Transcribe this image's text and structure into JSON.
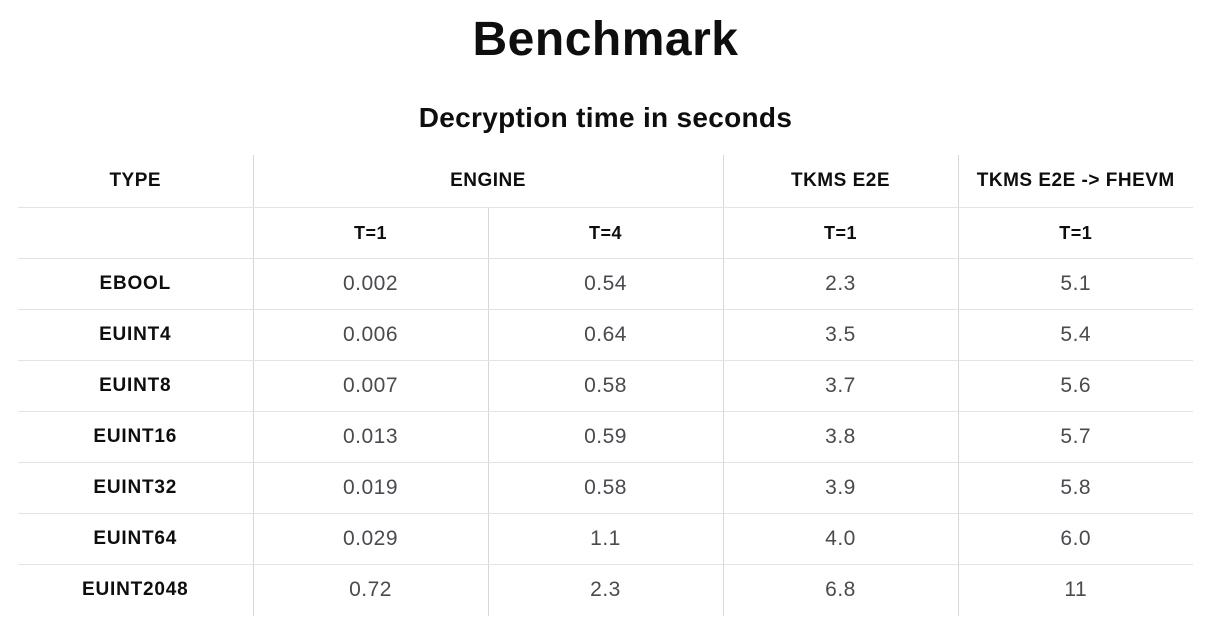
{
  "page": {
    "title": "Benchmark",
    "subtitle": "Decryption time in seconds"
  },
  "table": {
    "col_groups": [
      {
        "label": "TYPE",
        "colspan": 1
      },
      {
        "label": "ENGINE",
        "colspan": 2
      },
      {
        "label": "TKMS E2E",
        "colspan": 1
      },
      {
        "label": "TKMS E2E -> FHEVM",
        "colspan": 1
      }
    ],
    "sub_headers": [
      "",
      "T=1",
      "T=4",
      "T=1",
      "T=1"
    ],
    "rows": [
      {
        "type": "EBOOL",
        "values": [
          "0.002",
          "0.54",
          "2.3",
          "5.1"
        ]
      },
      {
        "type": "EUINT4",
        "values": [
          "0.006",
          "0.64",
          "3.5",
          "5.4"
        ]
      },
      {
        "type": "EUINT8",
        "values": [
          "0.007",
          "0.58",
          "3.7",
          "5.6"
        ]
      },
      {
        "type": "EUINT16",
        "values": [
          "0.013",
          "0.59",
          "3.8",
          "5.7"
        ]
      },
      {
        "type": "EUINT32",
        "values": [
          "0.019",
          "0.58",
          "3.9",
          "5.8"
        ]
      },
      {
        "type": "EUINT64",
        "values": [
          "0.029",
          "1.1",
          "4.0",
          "6.0"
        ]
      },
      {
        "type": "EUINT2048",
        "values": [
          "0.72",
          "2.3",
          "6.8",
          "11"
        ]
      }
    ]
  },
  "chart_data": {
    "type": "table",
    "title": "Benchmark",
    "subtitle": "Decryption time in seconds",
    "unit": "seconds",
    "categories": [
      "EBOOL",
      "EUINT4",
      "EUINT8",
      "EUINT16",
      "EUINT32",
      "EUINT64",
      "EUINT2048"
    ],
    "series": [
      {
        "name": "ENGINE T=1",
        "values": [
          0.002,
          0.006,
          0.007,
          0.013,
          0.019,
          0.029,
          0.72
        ]
      },
      {
        "name": "ENGINE T=4",
        "values": [
          0.54,
          0.64,
          0.58,
          0.59,
          0.58,
          1.1,
          2.3
        ]
      },
      {
        "name": "TKMS E2E T=1",
        "values": [
          2.3,
          3.5,
          3.7,
          3.8,
          3.9,
          4.0,
          6.8
        ]
      },
      {
        "name": "TKMS E2E -> FHEVM T=1",
        "values": [
          5.1,
          5.4,
          5.6,
          5.7,
          5.8,
          6.0,
          11
        ]
      }
    ]
  },
  "colors": {
    "background": "#ffffff",
    "heading_text": "#0e0e0e",
    "value_text": "#4a4a50",
    "grid_vertical": "#d7d7d7",
    "grid_horizontal": "#e3e3e3"
  }
}
